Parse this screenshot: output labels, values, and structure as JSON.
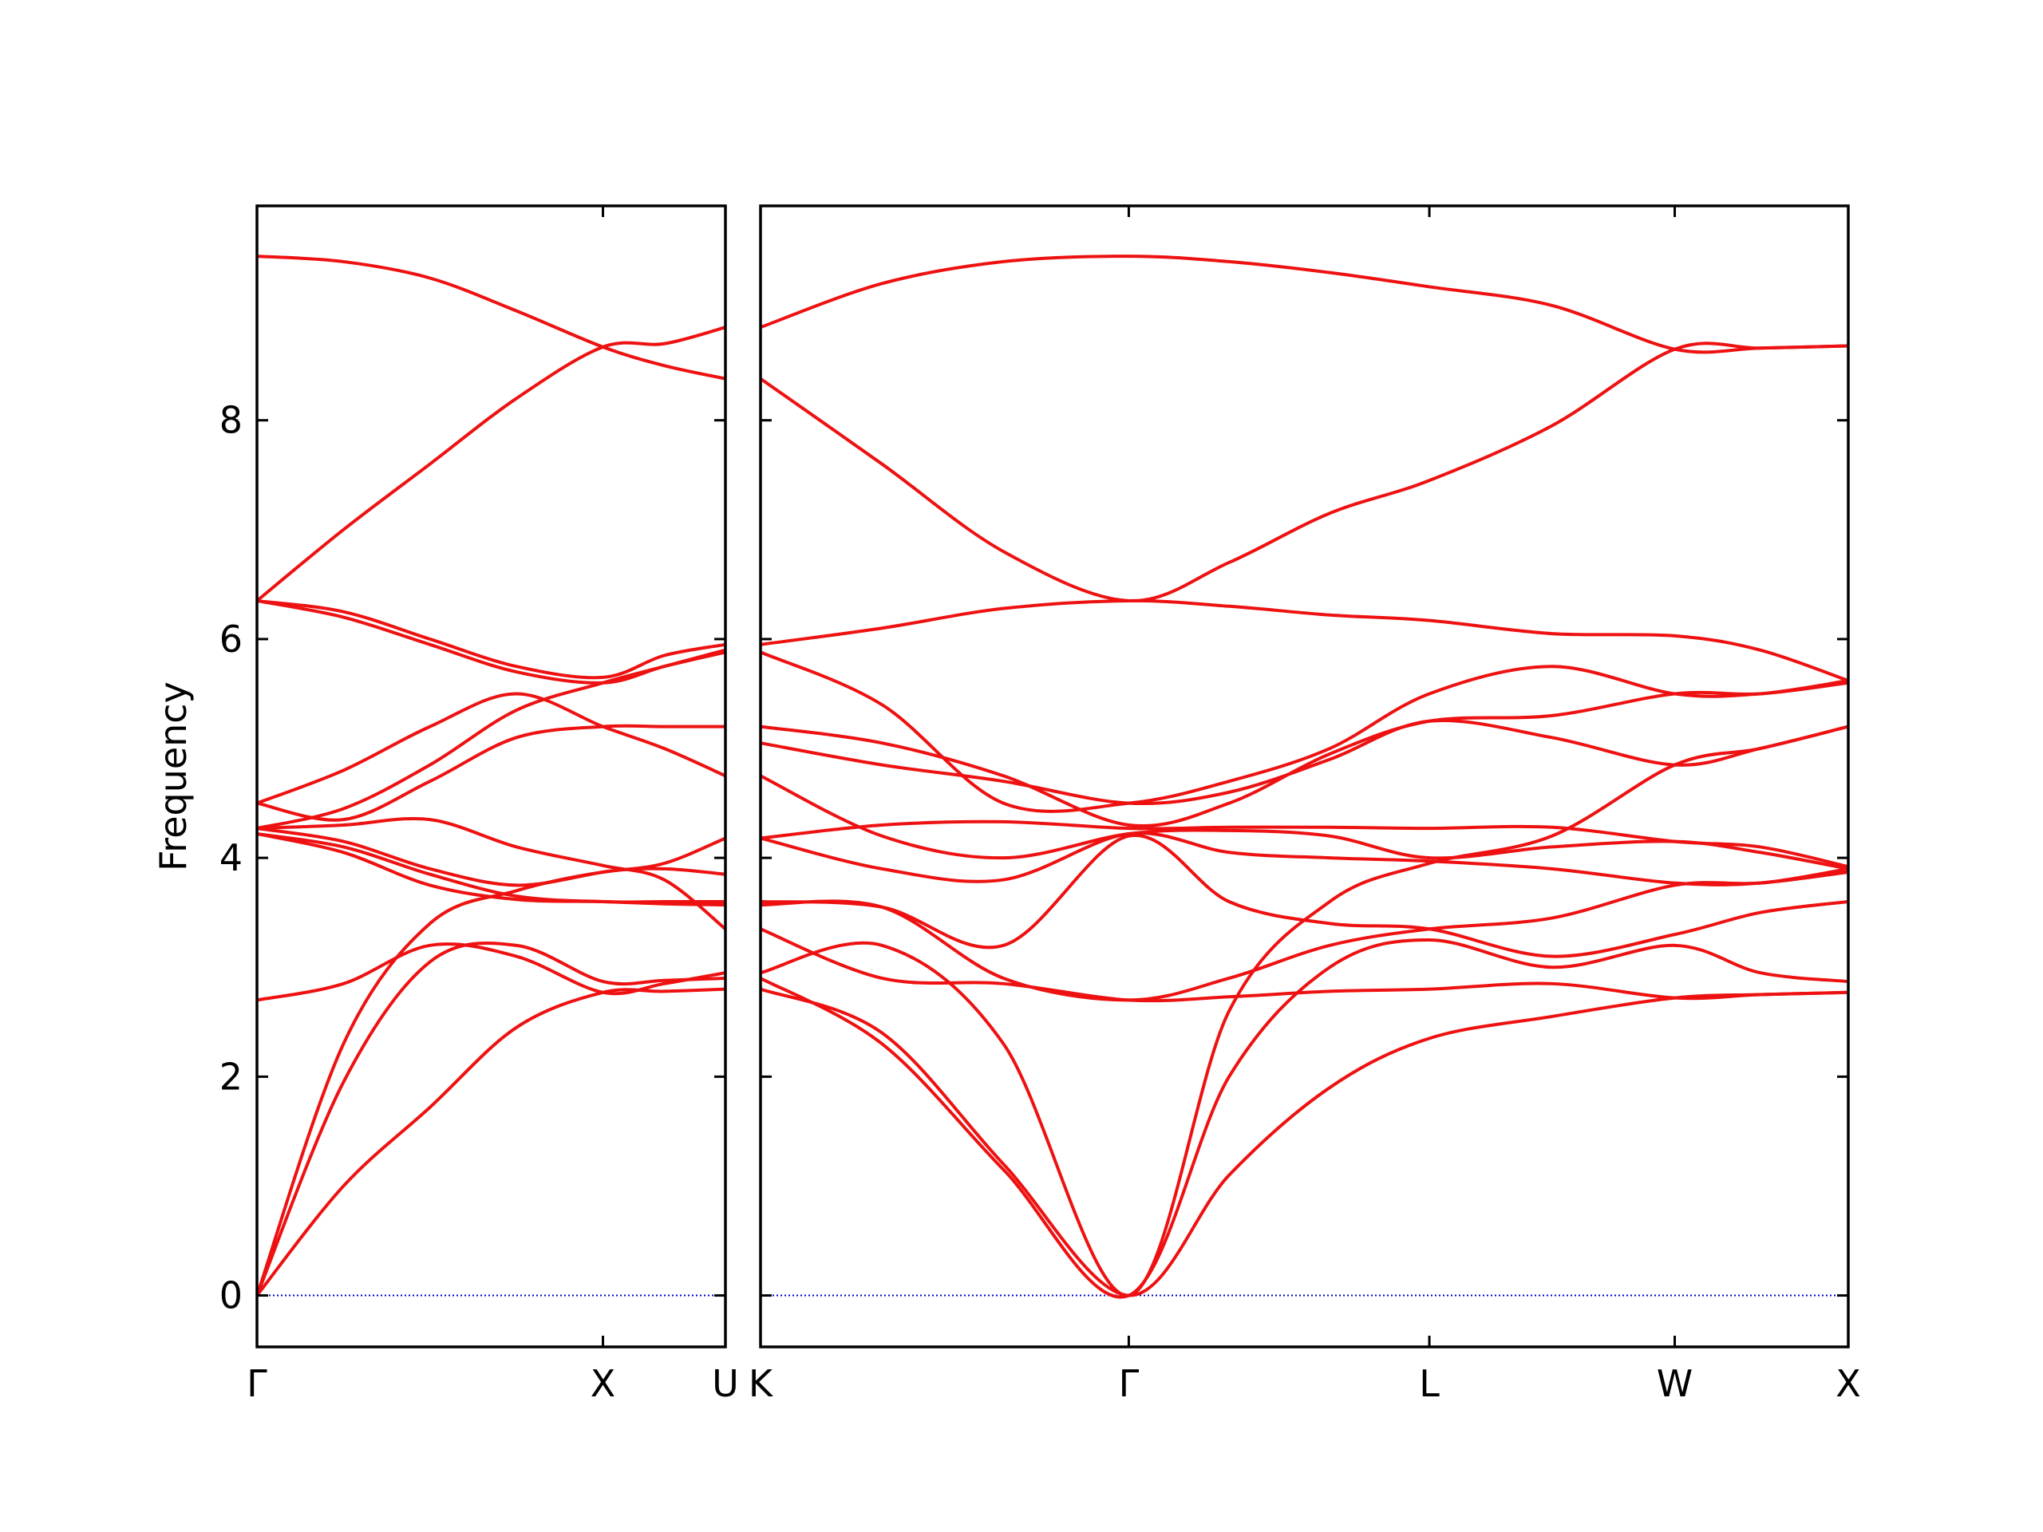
{
  "chart_data": [
    {
      "type": "line",
      "ylabel": "Frequency",
      "x": [
        0,
        0.25,
        0.5,
        0.75,
        1,
        1.177,
        1.354
      ],
      "xlim": [
        0,
        1.354
      ],
      "ylim": [
        -0.47,
        9.96
      ],
      "xticks": [
        {
          "value": 0,
          "label": "Γ"
        },
        {
          "value": 1,
          "label": "X"
        },
        {
          "value": 1.354,
          "label": "U"
        }
      ],
      "yticks": [
        0,
        2,
        4,
        6,
        8
      ],
      "hline": 0,
      "hline_color": "#0000cc",
      "series": [
        {
          "color": "#ee1111",
          "values": [
            0,
            1.0,
            1.72,
            2.45,
            2.77,
            2.78,
            2.8
          ]
        },
        {
          "color": "#ee1111",
          "values": [
            0,
            1.95,
            3.05,
            3.2,
            2.87,
            2.88,
            2.9
          ]
        },
        {
          "color": "#ee1111",
          "values": [
            0,
            2.3,
            3.4,
            3.7,
            3.87,
            3.9,
            3.85
          ]
        },
        {
          "color": "#ee1111",
          "values": [
            2.7,
            2.85,
            3.2,
            3.1,
            2.77,
            2.85,
            2.95
          ]
        },
        {
          "color": "#ee1111",
          "values": [
            4.22,
            4.05,
            3.75,
            3.62,
            3.6,
            3.58,
            3.57
          ]
        },
        {
          "color": "#ee1111",
          "values": [
            4.22,
            4.1,
            3.85,
            3.65,
            3.6,
            3.6,
            3.6
          ]
        },
        {
          "color": "#ee1111",
          "values": [
            4.27,
            4.15,
            3.9,
            3.75,
            3.87,
            3.95,
            4.18
          ]
        },
        {
          "color": "#ee1111",
          "values": [
            4.27,
            4.3,
            4.35,
            4.1,
            3.93,
            3.8,
            3.35
          ]
        },
        {
          "color": "#ee1111",
          "values": [
            4.5,
            4.35,
            4.7,
            5.1,
            5.2,
            5.2,
            5.2
          ]
        },
        {
          "color": "#ee1111",
          "values": [
            4.5,
            4.8,
            5.2,
            5.5,
            5.2,
            5.0,
            4.75
          ]
        },
        {
          "color": "#ee1111",
          "values": [
            4.27,
            4.45,
            4.85,
            5.35,
            5.6,
            5.75,
            5.9
          ]
        },
        {
          "color": "#ee1111",
          "values": [
            6.35,
            6.2,
            5.95,
            5.7,
            5.6,
            5.75,
            5.88
          ]
        },
        {
          "color": "#ee1111",
          "values": [
            6.35,
            6.25,
            6.0,
            5.75,
            5.65,
            5.85,
            5.95
          ]
        },
        {
          "color": "#ee1111",
          "values": [
            6.35,
            7.0,
            7.6,
            8.2,
            8.67,
            8.7,
            8.85
          ]
        },
        {
          "color": "#ee1111",
          "values": [
            9.5,
            9.45,
            9.3,
            9.0,
            8.67,
            8.5,
            8.38
          ]
        }
      ]
    },
    {
      "type": "line",
      "x": [
        0,
        0.35,
        0.7,
        1.061,
        1.35,
        1.64,
        1.927,
        2.28,
        2.634,
        2.88,
        3.134
      ],
      "xlim": [
        0,
        3.134
      ],
      "ylim": [
        -0.47,
        9.96
      ],
      "xticks": [
        {
          "value": 0,
          "label": "K"
        },
        {
          "value": 1.061,
          "label": "Γ"
        },
        {
          "value": 1.927,
          "label": "L"
        },
        {
          "value": 2.634,
          "label": "W"
        },
        {
          "value": 3.134,
          "label": "X"
        }
      ],
      "yticks": [
        0,
        2,
        4,
        6,
        8
      ],
      "hline": 0,
      "hline_color": "#0000cc",
      "series": [
        {
          "color": "#ee1111",
          "values": [
            2.8,
            2.4,
            1.2,
            0,
            1.1,
            1.9,
            2.35,
            2.55,
            2.72,
            2.75,
            2.77
          ]
        },
        {
          "color": "#ee1111",
          "values": [
            2.9,
            2.3,
            1.15,
            0,
            2.0,
            3.0,
            3.25,
            3.0,
            3.2,
            2.95,
            2.87
          ]
        },
        {
          "color": "#ee1111",
          "values": [
            2.95,
            3.2,
            2.3,
            0,
            2.6,
            3.6,
            3.95,
            4.2,
            4.85,
            5.0,
            5.2
          ]
        },
        {
          "color": "#ee1111",
          "values": [
            3.35,
            2.9,
            2.85,
            2.7,
            2.73,
            2.78,
            2.8,
            2.85,
            2.72,
            2.75,
            2.77
          ]
        },
        {
          "color": "#ee1111",
          "values": [
            3.57,
            3.55,
            2.9,
            2.7,
            2.9,
            3.2,
            3.35,
            3.45,
            3.75,
            3.77,
            3.87
          ]
        },
        {
          "color": "#ee1111",
          "values": [
            3.6,
            3.55,
            3.2,
            4.2,
            3.6,
            3.4,
            3.35,
            3.1,
            3.3,
            3.5,
            3.6
          ]
        },
        {
          "color": "#ee1111",
          "values": [
            4.18,
            3.9,
            3.8,
            4.22,
            4.05,
            4.0,
            3.97,
            3.9,
            3.77,
            3.77,
            3.9
          ]
        },
        {
          "color": "#ee1111",
          "values": [
            4.18,
            4.3,
            4.33,
            4.27,
            4.28,
            4.28,
            4.27,
            4.28,
            4.15,
            4.1,
            3.92
          ]
        },
        {
          "color": "#ee1111",
          "values": [
            4.75,
            4.2,
            4.0,
            4.22,
            4.25,
            4.2,
            4.0,
            4.1,
            4.15,
            4.05,
            3.9
          ]
        },
        {
          "color": "#ee1111",
          "values": [
            5.05,
            4.85,
            4.7,
            4.5,
            4.6,
            4.9,
            5.25,
            5.1,
            4.85,
            5.0,
            5.2
          ]
        },
        {
          "color": "#ee1111",
          "values": [
            5.2,
            5.05,
            4.75,
            4.3,
            4.5,
            4.95,
            5.25,
            5.3,
            5.5,
            5.5,
            5.6
          ]
        },
        {
          "color": "#ee1111",
          "values": [
            5.88,
            5.4,
            4.5,
            4.5,
            4.7,
            5.0,
            5.5,
            5.75,
            5.5,
            5.5,
            5.62
          ]
        },
        {
          "color": "#ee1111",
          "values": [
            5.95,
            6.1,
            6.28,
            6.35,
            6.3,
            6.22,
            6.17,
            6.05,
            6.03,
            5.9,
            5.62
          ]
        },
        {
          "color": "#ee1111",
          "values": [
            8.38,
            7.6,
            6.8,
            6.35,
            6.7,
            7.15,
            7.45,
            7.95,
            8.65,
            8.66,
            8.68
          ]
        },
        {
          "color": "#ee1111",
          "values": [
            8.85,
            9.25,
            9.45,
            9.5,
            9.45,
            9.35,
            9.22,
            9.05,
            8.65,
            8.66,
            8.68
          ]
        }
      ]
    }
  ]
}
